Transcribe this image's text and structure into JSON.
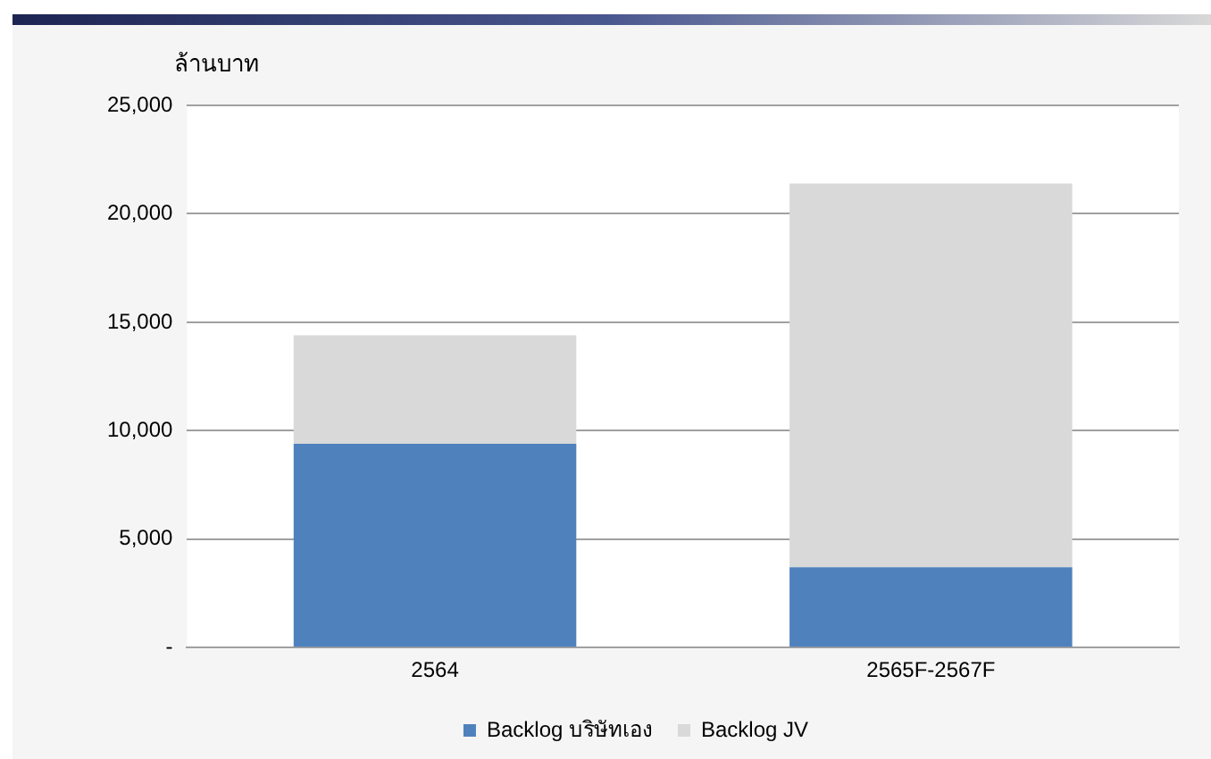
{
  "chart_data": {
    "type": "bar",
    "ylabel": "ล้านบาท",
    "categories": [
      "2564",
      "2565F-2567F"
    ],
    "stacked": true,
    "series": [
      {
        "name": "Backlog บริษัทเอง",
        "color": "#4f81bd",
        "values": [
          9400,
          3700
        ]
      },
      {
        "name": "Backlog JV",
        "color": "#d9d9d9",
        "values": [
          5000,
          17700
        ]
      }
    ],
    "ylim": [
      0,
      25000
    ],
    "yticks": [
      {
        "value": 0,
        "label": "-"
      },
      {
        "value": 5000,
        "label": "5,000"
      },
      {
        "value": 10000,
        "label": "10,000"
      },
      {
        "value": 15000,
        "label": "15,000"
      },
      {
        "value": 20000,
        "label": "20,000"
      },
      {
        "value": 25000,
        "label": "25,000"
      }
    ],
    "grid": "y",
    "legend": "bottom"
  }
}
